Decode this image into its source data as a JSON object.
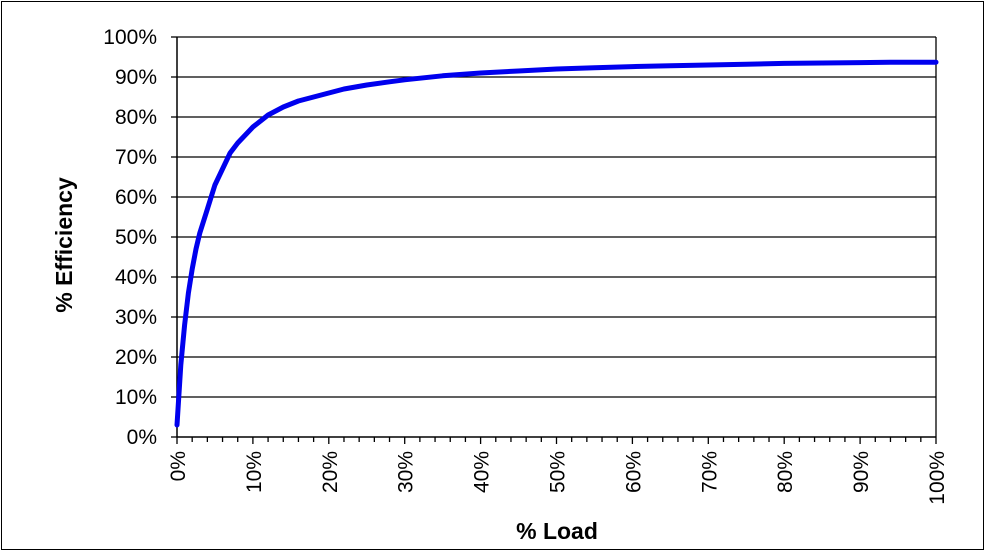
{
  "chart_data": {
    "type": "line",
    "xlabel": "% Load",
    "ylabel": "% Efficiency",
    "xlim": [
      0,
      100
    ],
    "ylim": [
      0,
      100
    ],
    "x_ticks": [
      "0%",
      "10%",
      "20%",
      "30%",
      "40%",
      "50%",
      "60%",
      "70%",
      "80%",
      "90%",
      "100%"
    ],
    "y_ticks": [
      "0%",
      "10%",
      "20%",
      "30%",
      "40%",
      "50%",
      "60%",
      "70%",
      "80%",
      "90%",
      "100%"
    ],
    "grid": "horizontal",
    "legend": "none",
    "series": [
      {
        "color": "#0000ee",
        "x": [
          0,
          0.5,
          1,
          1.5,
          2,
          2.5,
          3,
          4,
          5,
          6,
          7,
          8,
          10,
          12,
          14,
          16,
          18,
          20,
          22,
          25,
          28,
          30,
          35,
          40,
          45,
          50,
          55,
          60,
          65,
          70,
          75,
          80,
          85,
          90,
          95,
          100
        ],
        "y": [
          3,
          18,
          28,
          36,
          42,
          47,
          51,
          57,
          63,
          67,
          71,
          73.5,
          77.5,
          80.5,
          82.5,
          84,
          85,
          86,
          87,
          88,
          88.8,
          89.3,
          90.3,
          91,
          91.5,
          92,
          92.3,
          92.6,
          92.8,
          93,
          93.2,
          93.4,
          93.5,
          93.6,
          93.7,
          93.7
        ]
      }
    ]
  }
}
